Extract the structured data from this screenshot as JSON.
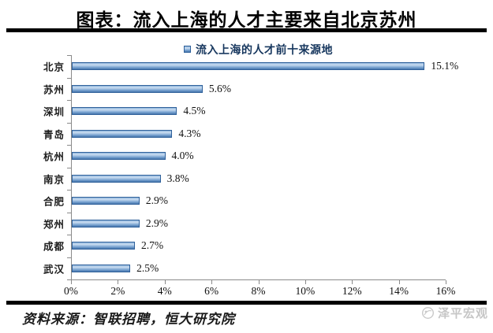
{
  "header": {
    "title": "图表：流入上海的人才主要来自北京苏州"
  },
  "chart_data": {
    "type": "bar",
    "orientation": "horizontal",
    "legend": "流入上海的人才前十来源地",
    "categories": [
      "北京",
      "苏州",
      "深圳",
      "青岛",
      "杭州",
      "南京",
      "合肥",
      "郑州",
      "成都",
      "武汉"
    ],
    "values": [
      15.1,
      5.6,
      4.5,
      4.3,
      4.0,
      3.8,
      2.9,
      2.9,
      2.7,
      2.5
    ],
    "value_labels": [
      "15.1%",
      "5.6%",
      "4.5%",
      "4.3%",
      "4.0%",
      "3.8%",
      "2.9%",
      "2.9%",
      "2.7%",
      "2.5%"
    ],
    "x_ticks": [
      "0%",
      "2%",
      "4%",
      "6%",
      "8%",
      "10%",
      "12%",
      "14%",
      "16%"
    ],
    "xlim": [
      0,
      16
    ],
    "grid": false,
    "legend_position": "top-center",
    "bar_color": "#4f81bd",
    "bar_border_color": "#30619b",
    "legend_text_color": "#17375e",
    "axis_color": "#8a8a8a"
  },
  "footer": {
    "source": "资料来源：智联招聘，恒大研究院",
    "watermark": "泽平宏观"
  }
}
